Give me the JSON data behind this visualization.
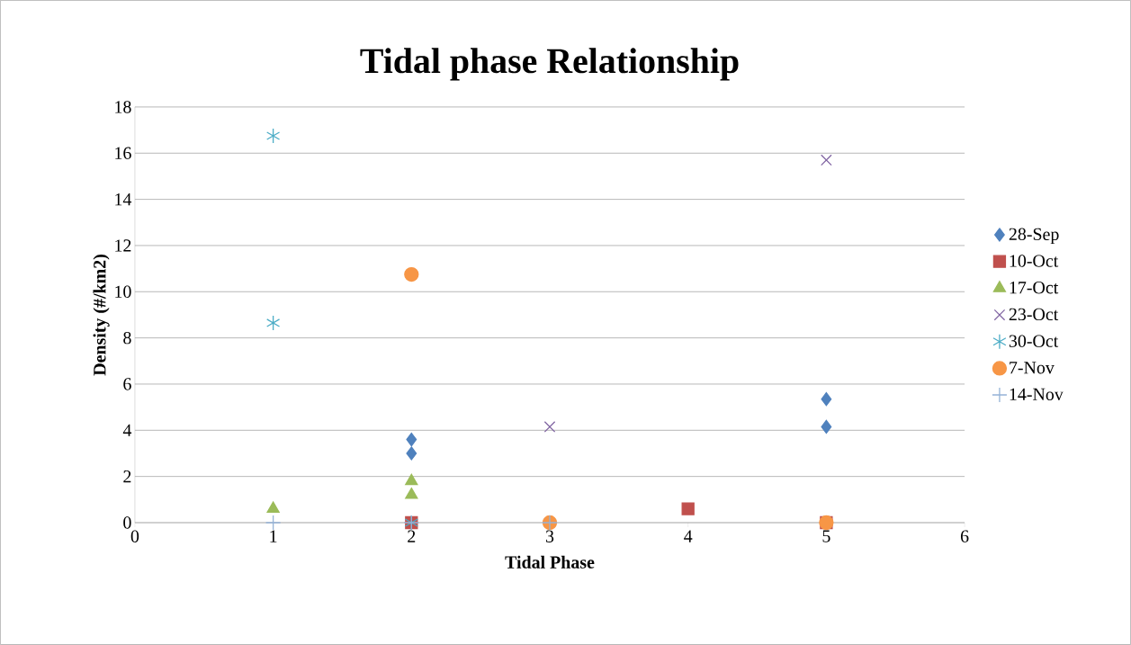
{
  "chart_data": {
    "type": "scatter",
    "title": "Tidal phase Relationship",
    "xlabel": "Tidal Phase",
    "ylabel": "Density (#/km2)",
    "xlim": [
      0,
      6
    ],
    "xticks": [
      0,
      1,
      2,
      3,
      4,
      5,
      6
    ],
    "ylim": [
      0,
      18
    ],
    "yticks": [
      0,
      2,
      4,
      6,
      8,
      10,
      12,
      14,
      16,
      18
    ],
    "grid": "y",
    "legend": "right",
    "series": [
      {
        "name": "28-Sep",
        "color": "#4f81bd",
        "marker": "diamond",
        "x": [
          2,
          2,
          5,
          5
        ],
        "values": [
          3.6,
          3.0,
          5.35,
          4.15
        ]
      },
      {
        "name": "10-Oct",
        "color": "#c0504d",
        "marker": "square",
        "x": [
          2,
          4,
          5
        ],
        "values": [
          0,
          0.6,
          0
        ]
      },
      {
        "name": "17-Oct",
        "color": "#9bbb59",
        "marker": "triangle",
        "x": [
          1,
          2,
          2
        ],
        "values": [
          0.6,
          1.8,
          1.2
        ]
      },
      {
        "name": "23-Oct",
        "color": "#8064a2",
        "marker": "cross",
        "x": [
          3,
          5,
          5
        ],
        "values": [
          4.15,
          15.7,
          0
        ]
      },
      {
        "name": "30-Oct",
        "color": "#4bacc6",
        "x": [
          1,
          1,
          2,
          3
        ],
        "values": [
          16.75,
          8.65,
          0,
          0
        ]
      },
      {
        "name": "7-Nov",
        "color": "#f79646",
        "marker": "circle",
        "x": [
          2,
          3,
          5
        ],
        "values": [
          10.75,
          0,
          0
        ]
      },
      {
        "name": "14-Nov",
        "color": "#95b3d7",
        "marker": "plus",
        "x": [
          1,
          2,
          3
        ],
        "values": [
          0,
          0,
          0
        ]
      }
    ]
  }
}
